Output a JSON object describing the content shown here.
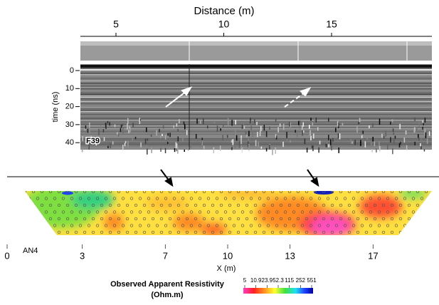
{
  "gpr": {
    "x_label": "Distance (m)",
    "x_ticks": [
      5,
      10,
      15
    ],
    "y_label": "time (ns)",
    "y_ticks": [
      0,
      10,
      20,
      30,
      40
    ],
    "profile_label": "F39"
  },
  "ert": {
    "line_label": "AN4",
    "x_label": "X (m)",
    "x_ticks": [
      0,
      3,
      7,
      10,
      13,
      17
    ],
    "colorbar": {
      "title": "Observed Apparent Resistivity",
      "units": "(Ohm.m)",
      "ticks": [
        5,
        10.9,
        23.9,
        52.3,
        115,
        252,
        551
      ]
    }
  }
}
